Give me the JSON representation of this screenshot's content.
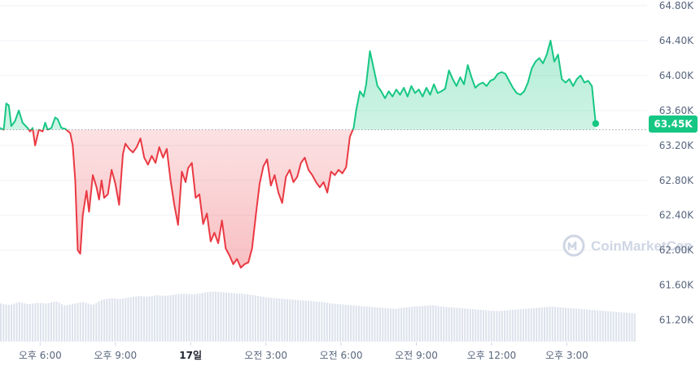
{
  "chart_data": {
    "type": "area",
    "title": "",
    "xlabel": "",
    "ylabel": "",
    "y_ticks": [
      "64.80K",
      "64.40K",
      "64.00K",
      "63.60K",
      "63.20K",
      "62.80K",
      "62.40K",
      "62.00K",
      "61.60K",
      "61.20K"
    ],
    "ylim": [
      61000,
      64800
    ],
    "x_ticks": [
      {
        "label": "오후 6:00",
        "t": 1.6
      },
      {
        "label": "오후 9:00",
        "t": 4.6
      },
      {
        "label": "17일",
        "t": 7.6,
        "bold": true
      },
      {
        "label": "오전 3:00",
        "t": 10.6
      },
      {
        "label": "오전 6:00",
        "t": 13.6
      },
      {
        "label": "오전 9:00",
        "t": 16.6
      },
      {
        "label": "오후 12:00",
        "t": 19.6
      },
      {
        "label": "오후 3:00",
        "t": 22.6
      }
    ],
    "xlim": [
      0,
      25.8
    ],
    "baseline": 63380,
    "current_price_label": "63.45K",
    "series": [
      {
        "values": [
          [
            0.0,
            63400
          ],
          [
            0.15,
            63380
          ],
          [
            0.25,
            63680
          ],
          [
            0.35,
            63660
          ],
          [
            0.45,
            63420
          ],
          [
            0.6,
            63480
          ],
          [
            0.75,
            63600
          ],
          [
            0.9,
            63460
          ],
          [
            1.1,
            63400
          ],
          [
            1.2,
            63360
          ],
          [
            1.3,
            63400
          ],
          [
            1.4,
            63200
          ],
          [
            1.55,
            63380
          ],
          [
            1.7,
            63360
          ],
          [
            1.8,
            63460
          ],
          [
            1.9,
            63380
          ],
          [
            2.05,
            63400
          ],
          [
            2.2,
            63520
          ],
          [
            2.3,
            63500
          ],
          [
            2.45,
            63400
          ],
          [
            2.6,
            63390
          ],
          [
            2.8,
            63340
          ],
          [
            2.9,
            63200
          ],
          [
            3.0,
            62800
          ],
          [
            3.1,
            62000
          ],
          [
            3.2,
            61960
          ],
          [
            3.3,
            62400
          ],
          [
            3.45,
            62680
          ],
          [
            3.55,
            62440
          ],
          [
            3.7,
            62860
          ],
          [
            3.85,
            62720
          ],
          [
            3.95,
            62580
          ],
          [
            4.05,
            62800
          ],
          [
            4.15,
            62600
          ],
          [
            4.3,
            62640
          ],
          [
            4.45,
            62920
          ],
          [
            4.6,
            62760
          ],
          [
            4.75,
            62520
          ],
          [
            4.9,
            63100
          ],
          [
            5.0,
            63220
          ],
          [
            5.15,
            63160
          ],
          [
            5.3,
            63120
          ],
          [
            5.45,
            63180
          ],
          [
            5.6,
            63280
          ],
          [
            5.75,
            63060
          ],
          [
            5.9,
            62980
          ],
          [
            6.05,
            63080
          ],
          [
            6.2,
            63000
          ],
          [
            6.35,
            63180
          ],
          [
            6.5,
            63060
          ],
          [
            6.65,
            63160
          ],
          [
            6.8,
            62800
          ],
          [
            6.95,
            62520
          ],
          [
            7.1,
            62290
          ],
          [
            7.25,
            62900
          ],
          [
            7.4,
            62780
          ],
          [
            7.5,
            62940
          ],
          [
            7.65,
            63000
          ],
          [
            7.8,
            62600
          ],
          [
            7.95,
            62640
          ],
          [
            8.1,
            62300
          ],
          [
            8.25,
            62420
          ],
          [
            8.4,
            62100
          ],
          [
            8.55,
            62200
          ],
          [
            8.7,
            62080
          ],
          [
            8.85,
            62340
          ],
          [
            9.0,
            62020
          ],
          [
            9.15,
            61940
          ],
          [
            9.3,
            61840
          ],
          [
            9.45,
            61900
          ],
          [
            9.6,
            61800
          ],
          [
            9.75,
            61840
          ],
          [
            9.9,
            61860
          ],
          [
            10.05,
            62020
          ],
          [
            10.2,
            62400
          ],
          [
            10.35,
            62760
          ],
          [
            10.5,
            62960
          ],
          [
            10.65,
            63040
          ],
          [
            10.8,
            62740
          ],
          [
            10.95,
            62860
          ],
          [
            11.1,
            62660
          ],
          [
            11.25,
            62540
          ],
          [
            11.4,
            62840
          ],
          [
            11.55,
            62920
          ],
          [
            11.7,
            62780
          ],
          [
            11.85,
            62840
          ],
          [
            12.0,
            63000
          ],
          [
            12.15,
            63060
          ],
          [
            12.3,
            62920
          ],
          [
            12.45,
            62860
          ],
          [
            12.6,
            62780
          ],
          [
            12.75,
            62720
          ],
          [
            12.9,
            62780
          ],
          [
            13.05,
            62660
          ],
          [
            13.2,
            62900
          ],
          [
            13.35,
            62860
          ],
          [
            13.5,
            62920
          ],
          [
            13.65,
            62880
          ],
          [
            13.8,
            62950
          ],
          [
            13.95,
            63300
          ],
          [
            14.1,
            63400
          ],
          [
            14.2,
            63600
          ],
          [
            14.35,
            63820
          ],
          [
            14.5,
            63760
          ],
          [
            14.6,
            63900
          ],
          [
            14.75,
            64280
          ],
          [
            14.9,
            64080
          ],
          [
            15.05,
            63880
          ],
          [
            15.2,
            63820
          ],
          [
            15.35,
            63740
          ],
          [
            15.5,
            63820
          ],
          [
            15.65,
            63760
          ],
          [
            15.8,
            63840
          ],
          [
            15.95,
            63780
          ],
          [
            16.1,
            63860
          ],
          [
            16.25,
            63760
          ],
          [
            16.4,
            63880
          ],
          [
            16.55,
            63800
          ],
          [
            16.7,
            63840
          ],
          [
            16.85,
            63760
          ],
          [
            17.0,
            63860
          ],
          [
            17.15,
            63780
          ],
          [
            17.3,
            63900
          ],
          [
            17.45,
            63800
          ],
          [
            17.6,
            63820
          ],
          [
            17.75,
            63850
          ],
          [
            17.9,
            64060
          ],
          [
            18.05,
            63960
          ],
          [
            18.2,
            63880
          ],
          [
            18.35,
            63980
          ],
          [
            18.5,
            63900
          ],
          [
            18.65,
            64120
          ],
          [
            18.8,
            63980
          ],
          [
            18.95,
            63860
          ],
          [
            19.1,
            63900
          ],
          [
            19.25,
            63920
          ],
          [
            19.4,
            63880
          ],
          [
            19.55,
            63940
          ],
          [
            19.7,
            63960
          ],
          [
            19.85,
            64020
          ],
          [
            20.0,
            64040
          ],
          [
            20.15,
            64020
          ],
          [
            20.3,
            63940
          ],
          [
            20.45,
            63860
          ],
          [
            20.6,
            63800
          ],
          [
            20.75,
            63780
          ],
          [
            20.9,
            63820
          ],
          [
            21.05,
            63920
          ],
          [
            21.2,
            64080
          ],
          [
            21.35,
            64160
          ],
          [
            21.5,
            64200
          ],
          [
            21.65,
            64140
          ],
          [
            21.8,
            64240
          ],
          [
            21.95,
            64400
          ],
          [
            22.1,
            64160
          ],
          [
            22.25,
            64240
          ],
          [
            22.4,
            63960
          ],
          [
            22.55,
            63920
          ],
          [
            22.7,
            63960
          ],
          [
            22.85,
            63880
          ],
          [
            23.0,
            63960
          ],
          [
            23.15,
            64000
          ],
          [
            23.3,
            63920
          ],
          [
            23.45,
            63940
          ],
          [
            23.6,
            63880
          ],
          [
            23.75,
            63450
          ]
        ]
      }
    ],
    "volume": [
      50,
      48,
      52,
      49,
      51,
      50,
      53,
      47,
      50,
      52,
      48,
      55,
      57,
      56,
      58,
      60,
      59,
      61,
      60,
      62,
      63,
      62,
      64,
      66,
      65,
      64,
      63,
      62,
      60,
      58,
      57,
      56,
      55,
      54,
      53,
      52,
      50,
      49,
      48,
      47,
      46,
      45,
      44,
      43,
      45,
      46,
      47,
      48,
      46,
      45,
      44,
      43,
      42,
      41,
      40,
      41,
      42,
      43,
      44,
      45,
      46,
      45,
      44,
      43,
      42,
      41,
      40,
      39,
      38,
      37
    ],
    "colors": {
      "up_line": "#16c784",
      "down_line": "#ea3943",
      "up_fill": "#16c784",
      "down_fill": "#ea3943",
      "badge": "#16c784",
      "volume": "#cfd6e4"
    }
  },
  "watermark": {
    "text": "CoinMarketCap",
    "icon": "coinmarketcap-logo-icon"
  }
}
